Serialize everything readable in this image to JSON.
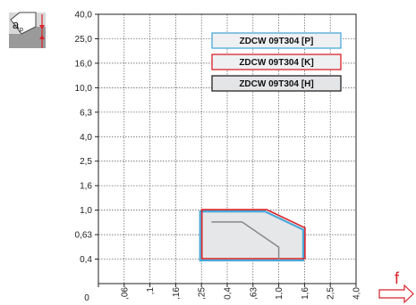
{
  "chart_data": {
    "type": "area",
    "x_ticks": [
      "0",
      ",06",
      ",1",
      ",16",
      ",25",
      "0,4",
      ",63",
      "1,0",
      "1,6",
      "2,5",
      "4,0"
    ],
    "y_ticks": [
      "40,0",
      "25,0",
      "16,0",
      "10,0",
      "6,3",
      "4,0",
      "2,5",
      "1,6",
      "1,0",
      "0,63",
      "0,4"
    ],
    "x_axis_label": "f",
    "y_axis_label": "ap",
    "grid": true,
    "legend_position": "top-right",
    "series": [
      {
        "name": "ZDCW 09T304 [P]",
        "color": "#4aa8d8",
        "points": [
          [
            0.25,
            0.4
          ],
          [
            0.25,
            1.0
          ],
          [
            0.8,
            1.0
          ],
          [
            1.6,
            0.71
          ],
          [
            1.6,
            0.4
          ]
        ]
      },
      {
        "name": "ZDCW 09T304 [K]",
        "color": "#d8232a",
        "points": [
          [
            0.25,
            0.4
          ],
          [
            0.25,
            1.0
          ],
          [
            0.8,
            1.0
          ],
          [
            1.6,
            0.71
          ],
          [
            1.6,
            0.4
          ]
        ]
      },
      {
        "name": "ZDCW 09T304 [H]",
        "color": "#888888",
        "points": [
          [
            0.3,
            0.8
          ],
          [
            0.52,
            0.8
          ],
          [
            1.0,
            0.5
          ],
          [
            1.0,
            0.4
          ]
        ]
      }
    ]
  }
}
